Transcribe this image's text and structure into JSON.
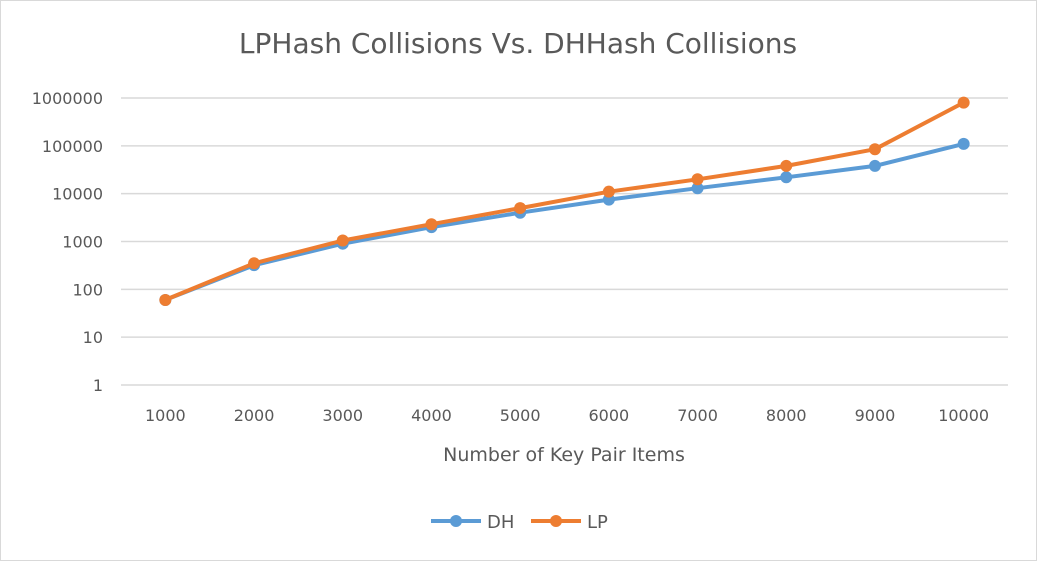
{
  "chart_data": {
    "type": "line",
    "title": "LPHash Collisions Vs. DHHash Collisions",
    "xlabel": "Number of Key Pair Items",
    "ylabel": "",
    "yscale": "log",
    "ylim": [
      1,
      1000000
    ],
    "y_ticks": [
      "1",
      "10",
      "100",
      "1000",
      "10000",
      "100000",
      "1000000"
    ],
    "categories": [
      "1000",
      "2000",
      "3000",
      "4000",
      "5000",
      "6000",
      "7000",
      "8000",
      "9000",
      "10000"
    ],
    "grid": true,
    "legend_position": "bottom",
    "series": [
      {
        "name": "DH",
        "color": "#5b9bd5",
        "values": [
          60,
          320,
          900,
          2000,
          4000,
          7500,
          13000,
          22000,
          38000,
          110000
        ]
      },
      {
        "name": "LP",
        "color": "#ed7d31",
        "values": [
          60,
          350,
          1050,
          2300,
          5000,
          11000,
          20000,
          38000,
          85000,
          800000
        ]
      }
    ]
  }
}
